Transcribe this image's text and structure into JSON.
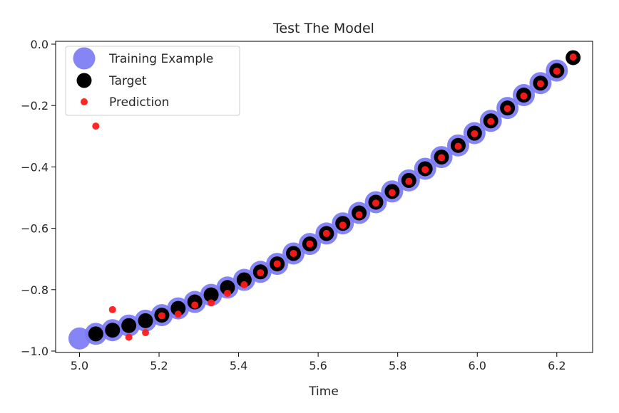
{
  "chart_data": {
    "type": "scatter",
    "title": "Test The Model",
    "xlabel": "Time",
    "ylabel": "",
    "xlim": [
      4.94,
      6.29
    ],
    "ylim": [
      -1.0,
      0.0
    ],
    "xticks": [
      5.0,
      5.2,
      5.4,
      5.6,
      5.8,
      6.0,
      6.2
    ],
    "xtick_labels": [
      "5.0",
      "5.2",
      "5.4",
      "5.6",
      "5.8",
      "6.0",
      "6.2"
    ],
    "yticks": [
      0.0,
      -0.2,
      -0.4,
      -0.6,
      -0.8,
      -1.0
    ],
    "ytick_labels": [
      "0.0",
      "−0.2",
      "−0.4",
      "−0.6",
      "−0.8",
      "−1.0"
    ],
    "grid": false,
    "legend_position": "top-left",
    "series": [
      {
        "name": "Training Example",
        "color": "#7b7bf4",
        "marker": "large-circle",
        "x": [
          5.0,
          5.041,
          5.083,
          5.124,
          5.166,
          5.207,
          5.248,
          5.29,
          5.331,
          5.372,
          5.414,
          5.455,
          5.497,
          5.538,
          5.579,
          5.621,
          5.662,
          5.703,
          5.745,
          5.786,
          5.828,
          5.869,
          5.91,
          5.952,
          5.993,
          6.034,
          6.076,
          6.117,
          6.159,
          6.2
        ],
        "y": [
          -0.959,
          -0.944,
          -0.932,
          -0.917,
          -0.901,
          -0.883,
          -0.861,
          -0.84,
          -0.817,
          -0.793,
          -0.768,
          -0.742,
          -0.716,
          -0.682,
          -0.651,
          -0.617,
          -0.584,
          -0.55,
          -0.515,
          -0.48,
          -0.444,
          -0.406,
          -0.368,
          -0.33,
          -0.29,
          -0.25,
          -0.208,
          -0.166,
          -0.127,
          -0.086
        ]
      },
      {
        "name": "Target",
        "color": "#000000",
        "marker": "circle",
        "x": [
          5.041,
          5.083,
          5.124,
          5.166,
          5.207,
          5.248,
          5.29,
          5.331,
          5.372,
          5.414,
          5.455,
          5.497,
          5.538,
          5.579,
          5.621,
          5.662,
          5.703,
          5.745,
          5.786,
          5.828,
          5.869,
          5.91,
          5.952,
          5.993,
          6.034,
          6.076,
          6.117,
          6.159,
          6.2,
          6.241
        ],
        "y": [
          -0.944,
          -0.932,
          -0.917,
          -0.901,
          -0.883,
          -0.861,
          -0.84,
          -0.817,
          -0.793,
          -0.768,
          -0.742,
          -0.716,
          -0.682,
          -0.651,
          -0.617,
          -0.584,
          -0.55,
          -0.515,
          -0.48,
          -0.444,
          -0.406,
          -0.368,
          -0.33,
          -0.29,
          -0.25,
          -0.208,
          -0.166,
          -0.127,
          -0.086,
          -0.044
        ]
      },
      {
        "name": "Prediction",
        "color": "#ff1a1a",
        "marker": "small-circle",
        "x": [
          5.041,
          5.083,
          5.124,
          5.166,
          5.207,
          5.248,
          5.29,
          5.331,
          5.372,
          5.414,
          5.455,
          5.497,
          5.538,
          5.579,
          5.621,
          5.662,
          5.703,
          5.745,
          5.786,
          5.828,
          5.869,
          5.91,
          5.952,
          5.993,
          6.034,
          6.076,
          6.117,
          6.159,
          6.2,
          6.241
        ],
        "y": [
          -0.267,
          -0.865,
          -0.955,
          -0.94,
          -0.885,
          -0.88,
          -0.85,
          -0.843,
          -0.812,
          -0.784,
          -0.745,
          -0.716,
          -0.682,
          -0.651,
          -0.617,
          -0.59,
          -0.556,
          -0.518,
          -0.484,
          -0.447,
          -0.409,
          -0.37,
          -0.333,
          -0.292,
          -0.252,
          -0.21,
          -0.169,
          -0.129,
          -0.088,
          -0.042
        ]
      }
    ]
  }
}
